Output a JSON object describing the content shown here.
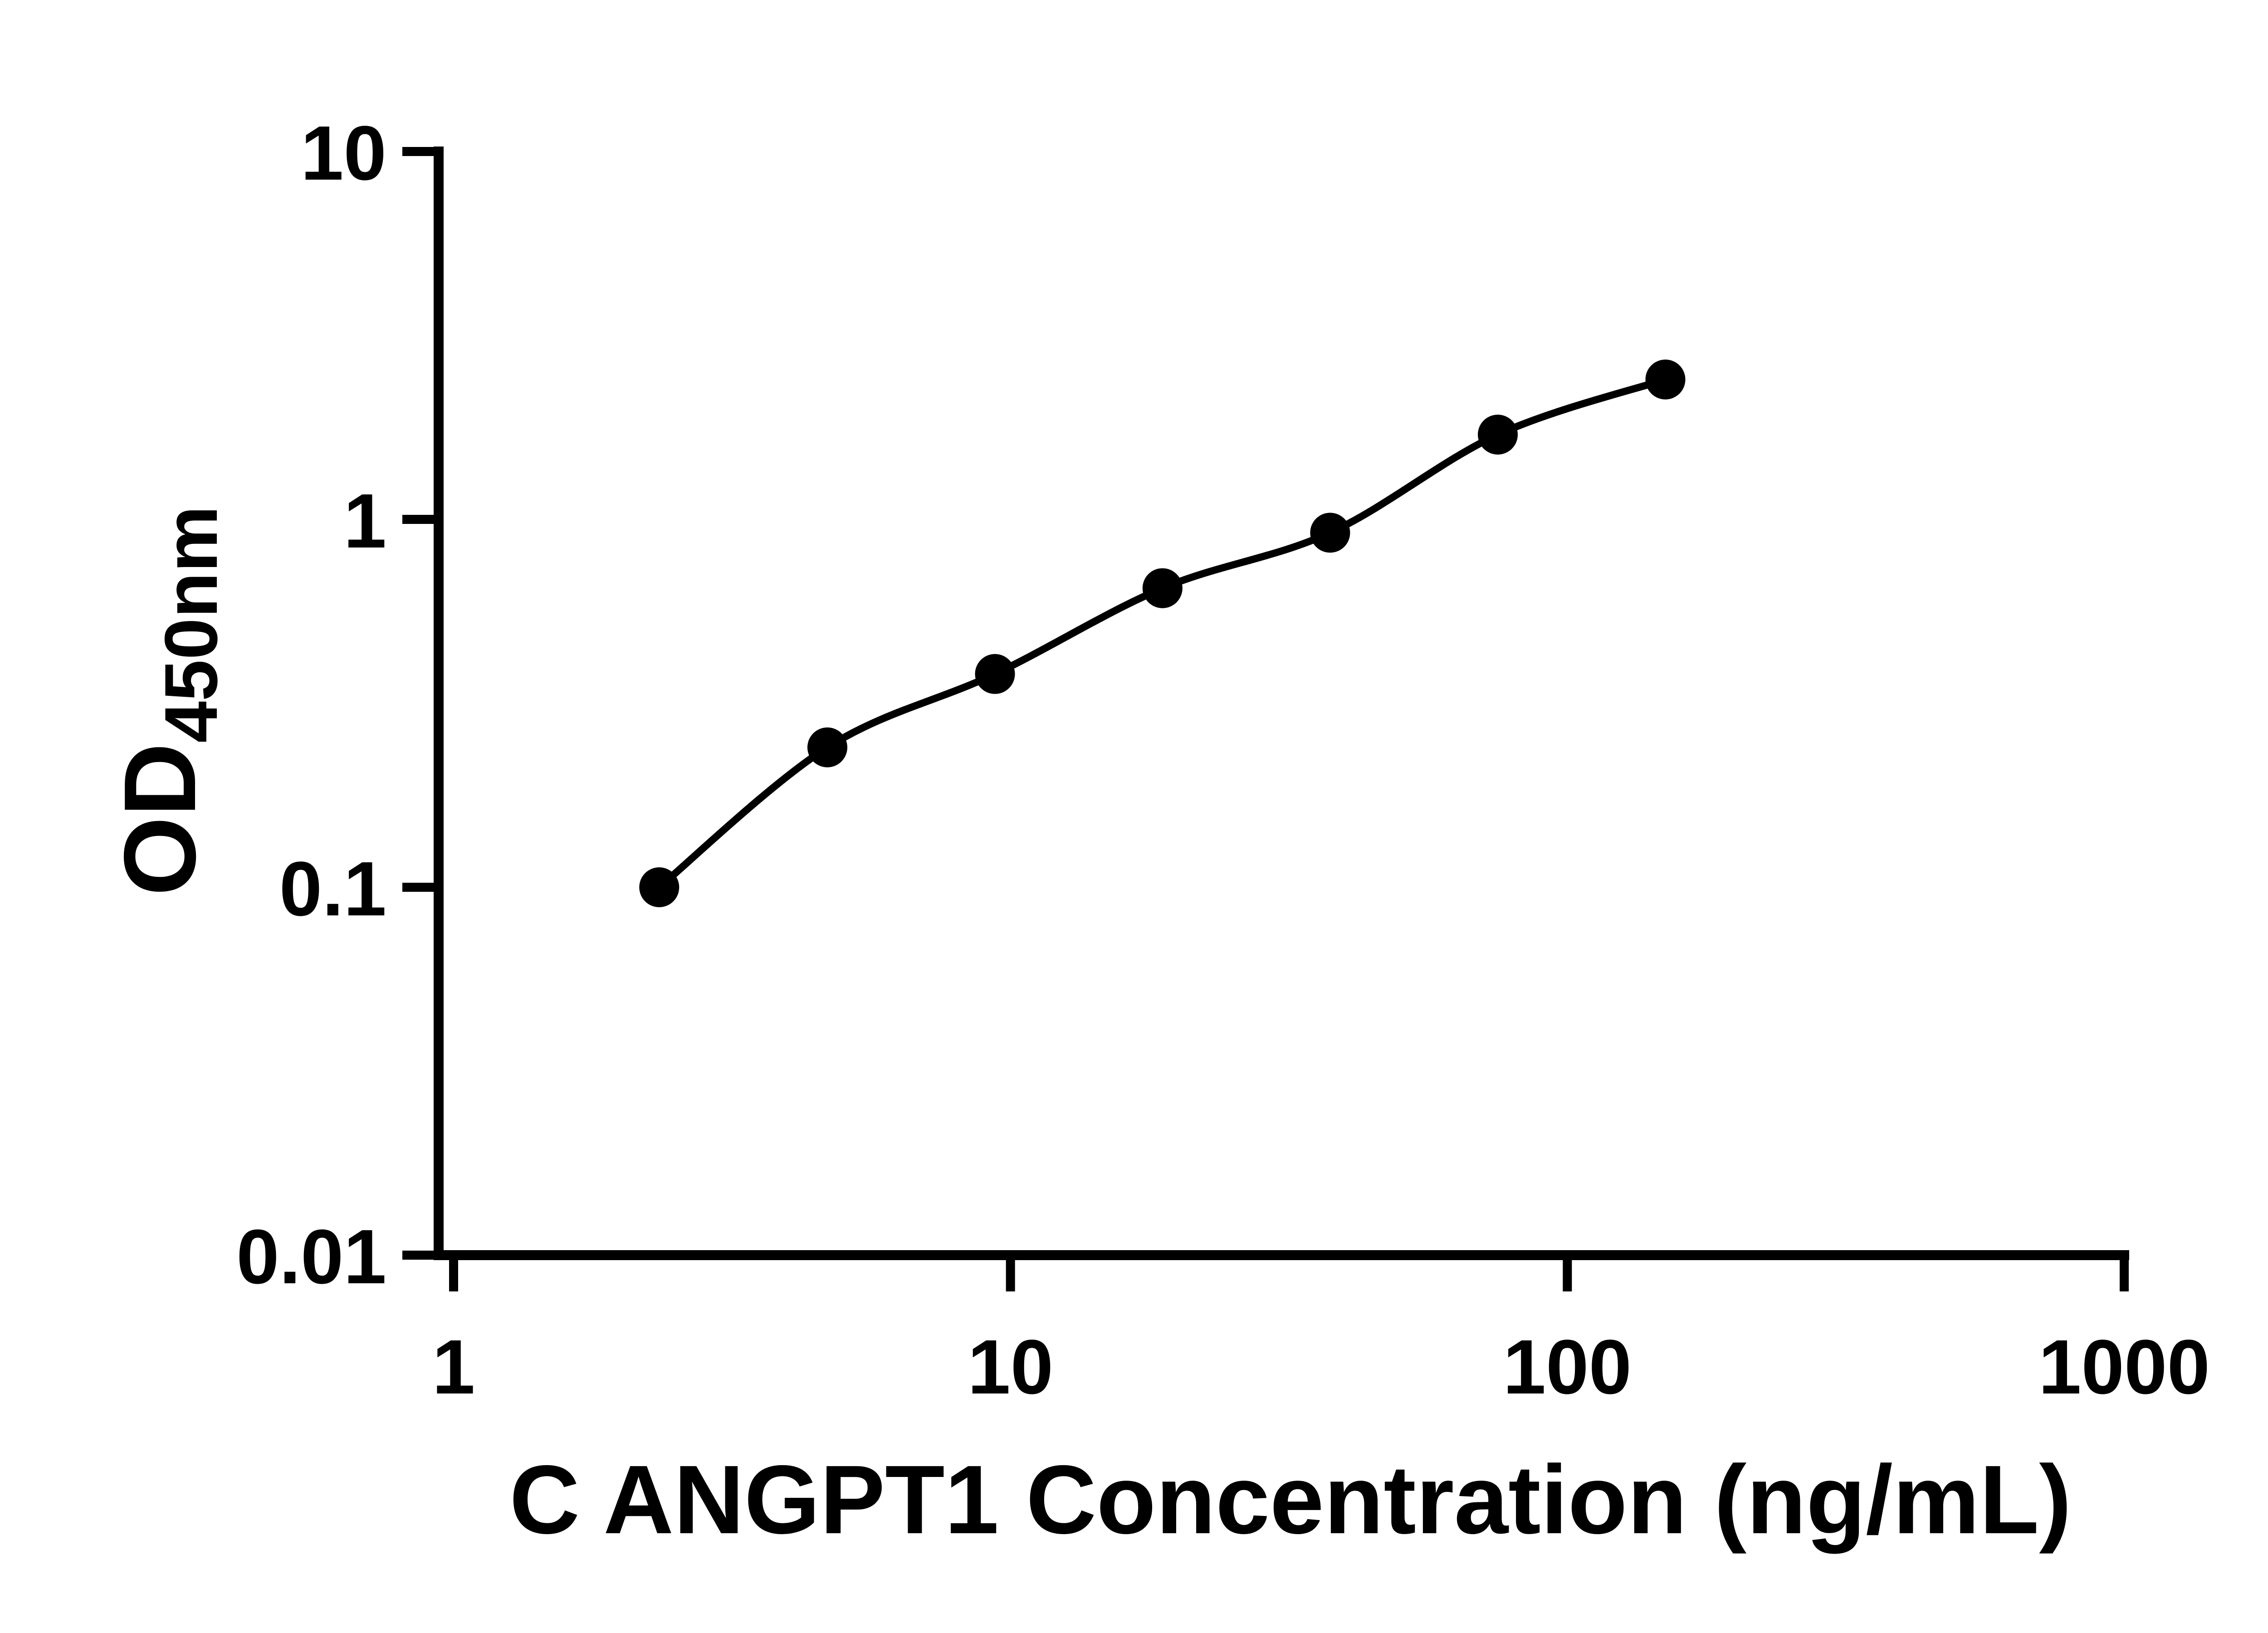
{
  "chart_data": {
    "type": "scatter",
    "x": [
      2.34,
      4.69,
      9.38,
      18.75,
      37.5,
      75,
      150
    ],
    "y": [
      0.1,
      0.24,
      0.38,
      0.65,
      0.92,
      1.7,
      2.4
    ],
    "title": "",
    "xlabel": "C ANGPT1 Concentration (ng/mL)",
    "ylabel_main": "OD",
    "ylabel_sub": "450nm",
    "x_scale": "log",
    "y_scale": "log",
    "xlim": [
      1,
      1000
    ],
    "ylim": [
      0.01,
      10
    ],
    "x_ticks": [
      1,
      10,
      100,
      1000
    ],
    "x_tick_labels": [
      "1",
      "10",
      "100",
      "1000"
    ],
    "y_ticks": [
      0.01,
      0.1,
      1,
      10
    ],
    "y_tick_labels": [
      "0.01",
      "0.1",
      "1",
      "10"
    ],
    "grid": false,
    "legend": false,
    "marker_color": "#000000",
    "line_color": "#000000",
    "axis_color": "#000000",
    "background": "#ffffff"
  }
}
